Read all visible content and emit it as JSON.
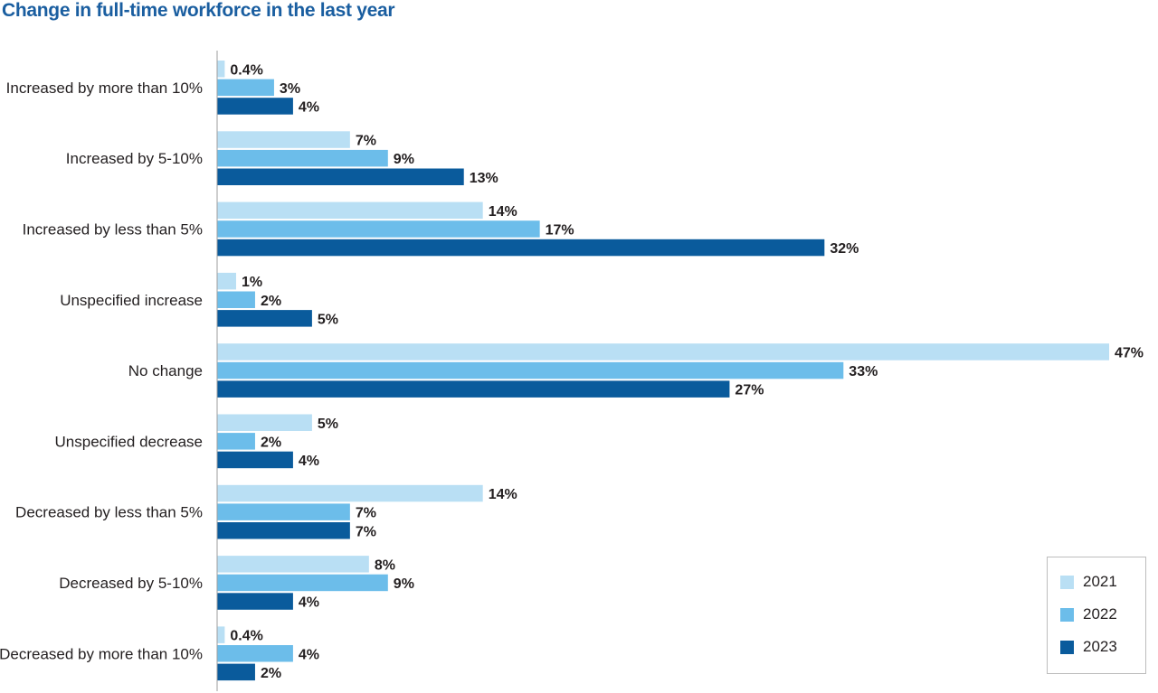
{
  "chart_data": {
    "type": "bar",
    "orientation": "horizontal",
    "title": "Change in full-time workforce in the last year",
    "categories": [
      "Increased by more than 10%",
      "Increased by 5-10%",
      "Increased by less than 5%",
      "Unspecified increase",
      "No change",
      "Unspecified decrease",
      "Decreased by less than 5%",
      "Decreased by 5-10%",
      "Decreased by more than 10%"
    ],
    "series": [
      {
        "name": "2021",
        "color": "#b9dff4",
        "values": [
          0.4,
          7,
          14,
          1,
          47,
          5,
          14,
          8,
          0.4
        ],
        "labels": [
          "0.4%",
          "7%",
          "14%",
          "1%",
          "47%",
          "5%",
          "14%",
          "8%",
          "0.4%"
        ]
      },
      {
        "name": "2022",
        "color": "#6cbdea",
        "values": [
          3,
          9,
          17,
          2,
          33,
          2,
          7,
          9,
          4
        ],
        "labels": [
          "3%",
          "9%",
          "17%",
          "2%",
          "33%",
          "2%",
          "7%",
          "9%",
          "4%"
        ]
      },
      {
        "name": "2023",
        "color": "#0a5b9c",
        "values": [
          4,
          13,
          32,
          5,
          27,
          4,
          7,
          4,
          2
        ],
        "labels": [
          "4%",
          "13%",
          "32%",
          "5%",
          "27%",
          "4%",
          "7%",
          "4%",
          "2%"
        ]
      }
    ],
    "xlim": [
      0,
      47
    ],
    "grid": false,
    "legend_position": "bottom-right"
  }
}
